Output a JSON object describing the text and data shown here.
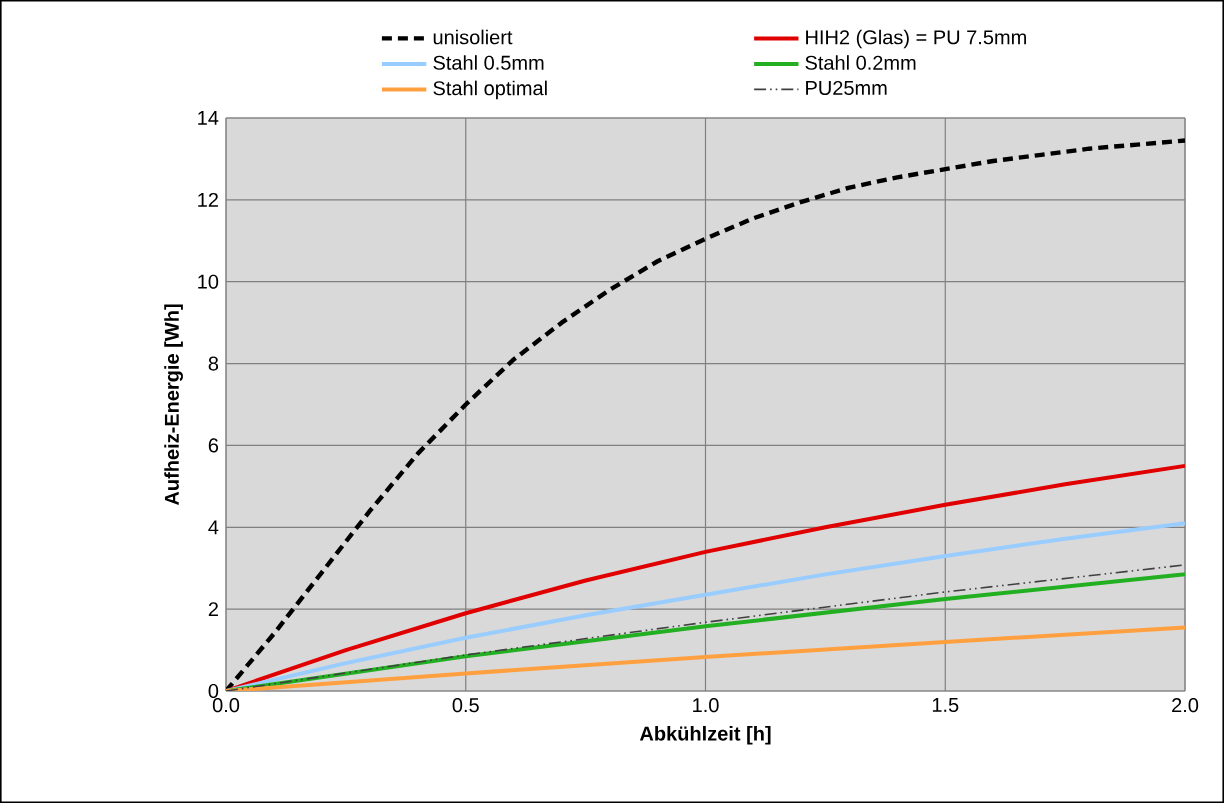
{
  "chart_data": {
    "type": "line",
    "xlabel": "Abkühlzeit [h]",
    "ylabel": "Aufheiz-Energie [Wh]",
    "xlim": [
      0,
      2
    ],
    "ylim": [
      0,
      14
    ],
    "xticks": [
      {
        "value": 0,
        "label": "0.0"
      },
      {
        "value": 0.5,
        "label": "0.5"
      },
      {
        "value": 1,
        "label": "1.0"
      },
      {
        "value": 1.5,
        "label": "1.5"
      },
      {
        "value": 2,
        "label": "2.0"
      }
    ],
    "yticks": [
      0,
      2,
      4,
      6,
      8,
      10,
      12,
      14
    ],
    "grid": true,
    "legend": "top",
    "marker": "none",
    "series": [
      {
        "name": "unisoliert",
        "color": "#000000",
        "line_style": "dashed",
        "x": [
          0,
          0.1,
          0.2,
          0.3,
          0.4,
          0.5,
          0.6,
          0.7,
          0.8,
          0.9,
          1.0,
          1.1,
          1.2,
          1.3,
          1.4,
          1.5,
          1.6,
          1.7,
          1.8,
          1.9,
          2.0
        ],
        "values": [
          0,
          1.4,
          2.9,
          4.4,
          5.8,
          7.0,
          8.1,
          9.0,
          9.8,
          10.5,
          11.05,
          11.55,
          11.95,
          12.3,
          12.55,
          12.75,
          12.95,
          13.1,
          13.25,
          13.35,
          13.45
        ]
      },
      {
        "name": "HIH2 (Glas) = PU 7.5mm",
        "color": "#e00000",
        "line_style": "solid",
        "x": [
          0,
          0.25,
          0.5,
          0.75,
          1.0,
          1.25,
          1.5,
          1.75,
          2.0
        ],
        "values": [
          0,
          1.0,
          1.9,
          2.7,
          3.4,
          4.0,
          4.55,
          5.05,
          5.5
        ]
      },
      {
        "name": "Stahl 0.5mm",
        "color": "#99ccff",
        "line_style": "solid",
        "x": [
          0,
          0.25,
          0.5,
          0.75,
          1.0,
          1.25,
          1.5,
          1.75,
          2.0
        ],
        "values": [
          0,
          0.68,
          1.3,
          1.85,
          2.35,
          2.85,
          3.3,
          3.72,
          4.1
        ]
      },
      {
        "name": "Stahl 0.2mm",
        "color": "#22b022",
        "line_style": "solid",
        "x": [
          0,
          0.5,
          1.0,
          1.5,
          2.0
        ],
        "values": [
          0,
          0.85,
          1.58,
          2.25,
          2.85
        ]
      },
      {
        "name": "Stahl optimal",
        "color": "#ffa040",
        "line_style": "solid",
        "x": [
          0,
          0.5,
          1.0,
          1.5,
          2.0
        ],
        "values": [
          0,
          0.43,
          0.83,
          1.2,
          1.55
        ]
      },
      {
        "name": "PU25mm",
        "color": "#404040",
        "line_style": "dashdotdot",
        "x": [
          0,
          0.5,
          1.0,
          1.5,
          2.0
        ],
        "values": [
          0,
          0.88,
          1.68,
          2.42,
          3.08
        ]
      }
    ]
  }
}
